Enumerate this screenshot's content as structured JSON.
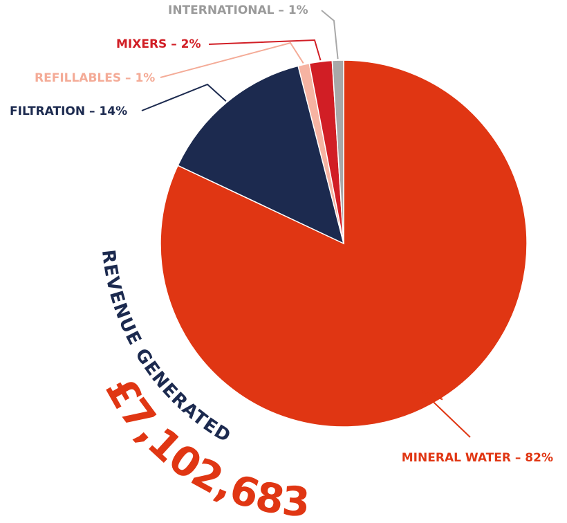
{
  "chart_data": {
    "type": "pie",
    "categories": [
      "Mineral Water",
      "Filtration",
      "Refillables",
      "Mixers",
      "International"
    ],
    "values": [
      82,
      14,
      1,
      2,
      1
    ],
    "unit": "%",
    "labels": [
      "MINERAL WATER – 82%",
      "FILTRATION – 14%",
      "REFILLABLES – 1%",
      "MIXERS – 2%",
      "INTERNATIONAL – 1%"
    ],
    "colors": [
      "#e03613",
      "#1c2a4f",
      "#f6b3a2",
      "#d11e25",
      "#a8a8a8"
    ],
    "label_colors": [
      "#e03613",
      "#1c2a4f",
      "#f4ab97",
      "#d11e25",
      "#9a9a9a"
    ],
    "title": "REVENUE GENERATED",
    "total": "£7,102,683",
    "title_color": "#1c2a4f",
    "total_color": "#e03613"
  }
}
